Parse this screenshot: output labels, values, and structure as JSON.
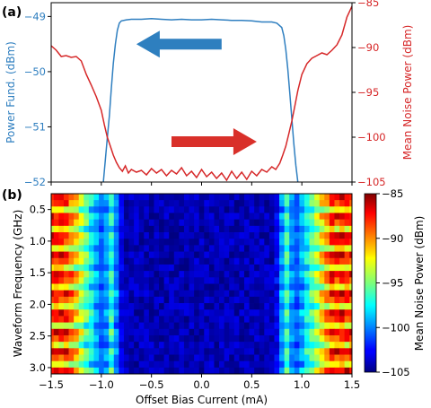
{
  "panel_a_label": "(a)",
  "panel_b_label": "(b)",
  "colors": {
    "power": "#2f7fc0",
    "noise": "#d62728",
    "arrow_blue": "#2e7fbf",
    "arrow_red": "#d9302a"
  },
  "chart_data": [
    {
      "type": "line",
      "panel": "a",
      "xlim": [
        -1.5,
        1.5
      ],
      "xtick_labels_shown": false,
      "y_left": {
        "label": "Power Fund. (dBm)",
        "ylim": [
          -52,
          -48.75
        ],
        "ticks": [
          -52,
          -51,
          -50,
          -49
        ],
        "tick_labels": [
          "−52",
          "−51",
          "−50",
          "−49"
        ],
        "color": "#2f7fc0"
      },
      "y_right": {
        "label": "Mean Noise Power (dBm)",
        "ylim": [
          -105,
          -85
        ],
        "ticks": [
          -105,
          -100,
          -95,
          -90,
          -85
        ],
        "tick_labels": [
          "−105",
          "−100",
          "−95",
          "−90",
          "−85"
        ],
        "color": "#d62728"
      },
      "series": [
        {
          "axis": "left",
          "color": "#2f7fc0",
          "x": [
            -0.98,
            -0.96,
            -0.94,
            -0.92,
            -0.9,
            -0.88,
            -0.86,
            -0.84,
            -0.82,
            -0.8,
            -0.75,
            -0.7,
            -0.6,
            -0.5,
            -0.4,
            -0.3,
            -0.2,
            -0.1,
            0.0,
            0.1,
            0.2,
            0.3,
            0.4,
            0.5,
            0.6,
            0.7,
            0.75,
            0.8,
            0.82,
            0.84,
            0.86,
            0.88,
            0.9,
            0.92,
            0.94,
            0.96
          ],
          "y": [
            -52.0,
            -51.6,
            -51.2,
            -50.8,
            -50.3,
            -49.85,
            -49.5,
            -49.25,
            -49.12,
            -49.08,
            -49.06,
            -49.05,
            -49.05,
            -49.04,
            -49.05,
            -49.06,
            -49.05,
            -49.06,
            -49.06,
            -49.05,
            -49.06,
            -49.07,
            -49.07,
            -49.08,
            -49.1,
            -49.1,
            -49.12,
            -49.2,
            -49.35,
            -49.6,
            -49.95,
            -50.4,
            -50.85,
            -51.3,
            -51.7,
            -52.0
          ]
        },
        {
          "axis": "right",
          "color": "#d62728",
          "x": [
            -1.5,
            -1.45,
            -1.4,
            -1.35,
            -1.3,
            -1.25,
            -1.2,
            -1.15,
            -1.1,
            -1.05,
            -1.0,
            -0.97,
            -0.94,
            -0.91,
            -0.88,
            -0.85,
            -0.82,
            -0.79,
            -0.76,
            -0.73,
            -0.7,
            -0.65,
            -0.6,
            -0.55,
            -0.5,
            -0.45,
            -0.4,
            -0.35,
            -0.3,
            -0.25,
            -0.2,
            -0.15,
            -0.1,
            -0.05,
            0.0,
            0.05,
            0.1,
            0.15,
            0.2,
            0.25,
            0.3,
            0.35,
            0.4,
            0.45,
            0.5,
            0.55,
            0.6,
            0.65,
            0.7,
            0.74,
            0.78,
            0.81,
            0.84,
            0.87,
            0.9,
            0.93,
            0.96,
            1.0,
            1.05,
            1.1,
            1.15,
            1.2,
            1.25,
            1.3,
            1.35,
            1.4,
            1.45,
            1.5
          ],
          "y": [
            -89.8,
            -90.3,
            -91.0,
            -90.9,
            -91.1,
            -91.0,
            -91.5,
            -93.0,
            -94.2,
            -95.5,
            -97.0,
            -98.6,
            -100.0,
            -101.0,
            -102.0,
            -102.8,
            -103.4,
            -103.8,
            -103.2,
            -104.0,
            -103.6,
            -103.9,
            -103.7,
            -104.2,
            -103.5,
            -104.0,
            -103.6,
            -104.3,
            -103.7,
            -104.1,
            -103.4,
            -104.3,
            -103.8,
            -104.5,
            -103.6,
            -104.4,
            -103.9,
            -104.6,
            -104.0,
            -104.8,
            -103.8,
            -104.6,
            -103.9,
            -104.7,
            -103.8,
            -104.3,
            -103.6,
            -103.9,
            -103.3,
            -103.6,
            -102.9,
            -102.0,
            -101.0,
            -99.6,
            -98.2,
            -96.5,
            -94.8,
            -93.0,
            -91.8,
            -91.2,
            -90.9,
            -90.6,
            -90.8,
            -90.3,
            -89.7,
            -88.6,
            -86.6,
            -85.4
          ]
        }
      ],
      "annotations": [
        {
          "type": "arrow",
          "direction": "left",
          "color": "#2e7fbf",
          "x_from": 0.2,
          "x_to": -0.65,
          "y": -49.5,
          "axis": "left"
        },
        {
          "type": "arrow",
          "direction": "right",
          "color": "#d9302a",
          "x_from": -0.3,
          "x_to": 0.55,
          "y": -100.5,
          "axis": "right"
        }
      ]
    },
    {
      "type": "heatmap",
      "panel": "b",
      "xlabel": "Offset Bias Current (mA)",
      "ylabel": "Waveform Frequency (GHz)",
      "xlim": [
        -1.5,
        1.5
      ],
      "ylim": [
        3.1,
        0.25
      ],
      "xticks": [
        -1.5,
        -1.0,
        -0.5,
        0.0,
        0.5,
        1.0,
        1.5
      ],
      "xtick_labels": [
        "−1.5",
        "−1.0",
        "−0.5",
        "0.0",
        "0.5",
        "1.0",
        "1.5"
      ],
      "yticks": [
        0.5,
        1.0,
        1.5,
        2.0,
        2.5,
        3.0
      ],
      "ytick_labels": [
        "0.5",
        "1.0",
        "1.5",
        "2.0",
        "2.5",
        "3.0"
      ],
      "y_inverted": true,
      "frequency_rows_GHz": {
        "start": 0.3,
        "stop": 3.05,
        "count": 28
      },
      "current_columns_mA": {
        "start": -1.5,
        "stop": 1.5,
        "count": 61
      },
      "colorbar": {
        "label": "Mean Noise Power (dBm)",
        "range": [
          -105,
          -85
        ],
        "ticks": [
          -105,
          -100,
          -95,
          -90,
          -85
        ],
        "tick_labels": [
          "−105",
          "−100",
          "−95",
          "−90",
          "−85"
        ],
        "colormap": "jet"
      },
      "description_values": {
        "low_noise_band_mA": [
          -0.9,
          0.85
        ],
        "low_noise_level_dBm": -104,
        "edge_noise_level_dBm": -87
      }
    }
  ]
}
